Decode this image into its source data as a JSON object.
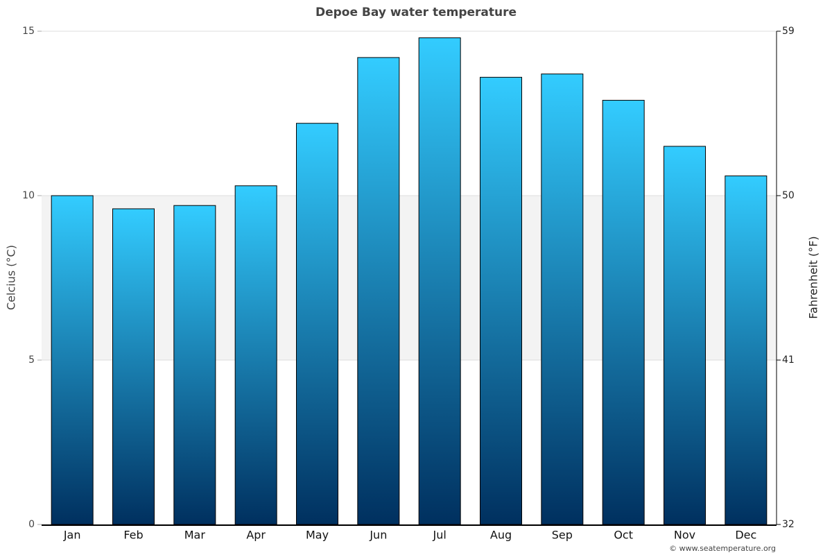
{
  "chart_data": {
    "type": "bar",
    "title": "Depoe Bay water temperature",
    "categories": [
      "Jan",
      "Feb",
      "Mar",
      "Apr",
      "May",
      "Jun",
      "Jul",
      "Aug",
      "Sep",
      "Oct",
      "Nov",
      "Dec"
    ],
    "values": [
      10.0,
      9.6,
      9.7,
      10.3,
      12.2,
      14.2,
      14.8,
      13.6,
      13.7,
      12.9,
      11.5,
      10.6
    ],
    "gradient": [
      "#33ccff",
      "#00305f"
    ],
    "ylim": [
      0,
      15
    ],
    "yticks": [
      0,
      5,
      10,
      15
    ],
    "ylabel": "Celcius (°C)",
    "y2lim": [
      32,
      59
    ],
    "y2ticks": [
      32,
      41,
      50,
      59
    ],
    "y2label": "Fahrenheit (°F)",
    "grid": true,
    "alternate_bands": true,
    "credit": "© www.seatemperature.org"
  }
}
